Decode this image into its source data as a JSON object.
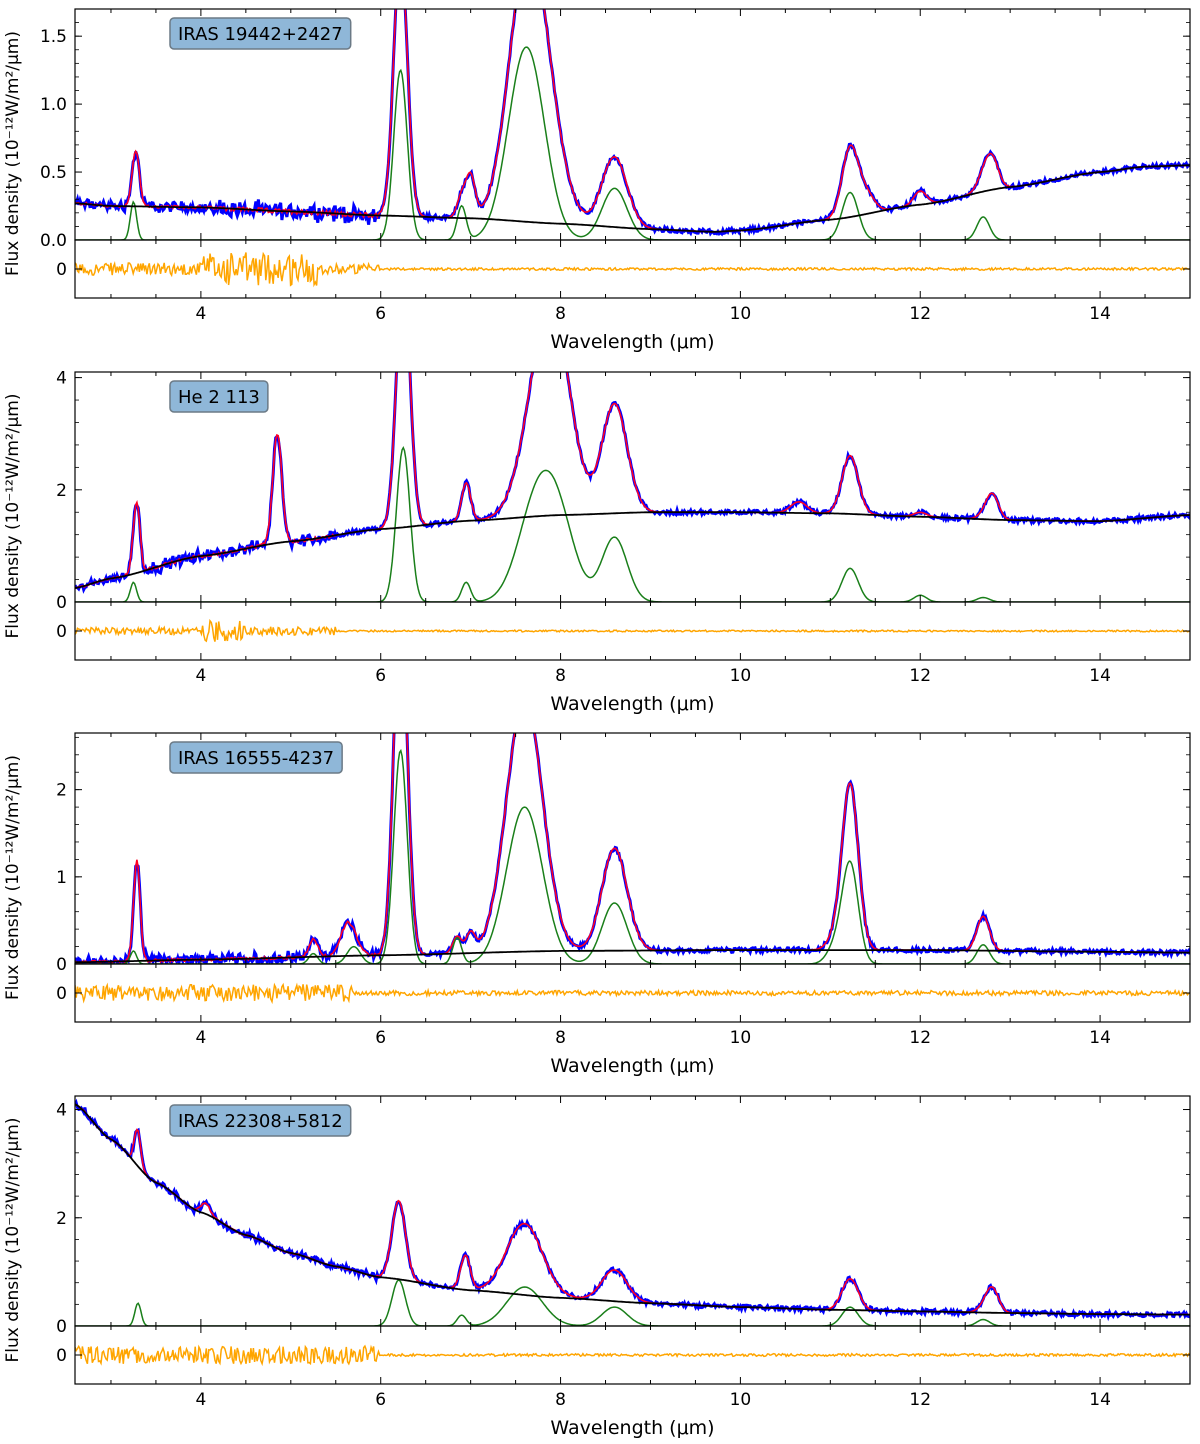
{
  "figure": {
    "x_label": "Wavelength (μm)",
    "y_label": "Flux density (10⁻¹²W/m²/μm)"
  },
  "colors": {
    "observed": "#0000ff",
    "model": "#ff0022",
    "pah": "#1a7f1a",
    "continuum": "#000000",
    "residual": "#ffa500",
    "label_box_fill": "#8fb7d8",
    "label_box_edge": "#6b7a86"
  },
  "chart_data": [
    {
      "type": "line",
      "label": "IRAS 19442+2427",
      "xlabel": "Wavelength (μm)",
      "ylabel": "Flux density (10⁻¹²W/m²/μm)",
      "xlim": [
        2.6,
        15.0
      ],
      "ylim": [
        0,
        1.7
      ],
      "x_ticks": [
        4,
        6,
        8,
        10,
        12,
        14
      ],
      "y_ticks": [
        0.0,
        0.5,
        1.0,
        1.5
      ],
      "y_tick_labels": [
        "0.0",
        "0.5",
        "1.0",
        "1.5"
      ],
      "residual_ylim": [
        -0.28,
        0.28
      ],
      "residual_ticks": [
        0
      ],
      "continuum": [
        [
          2.6,
          0.27
        ],
        [
          3,
          0.25
        ],
        [
          4,
          0.24
        ],
        [
          5,
          0.21
        ],
        [
          6,
          0.18
        ],
        [
          7,
          0.16
        ],
        [
          8,
          0.12
        ],
        [
          9,
          0.08
        ],
        [
          9.7,
          0.06
        ],
        [
          10,
          0.07
        ],
        [
          11,
          0.15
        ],
        [
          12,
          0.26
        ],
        [
          13,
          0.39
        ],
        [
          14,
          0.5
        ],
        [
          14.5,
          0.54
        ],
        [
          15,
          0.55
        ]
      ],
      "pah": [
        [
          3.25,
          0.28
        ],
        [
          6.22,
          1.25
        ],
        [
          6.9,
          0.25
        ],
        [
          7.62,
          1.42
        ],
        [
          8.6,
          0.38
        ],
        [
          11.22,
          0.35
        ],
        [
          12.7,
          0.17
        ]
      ],
      "model_peaks": [
        [
          3.29,
          0.29
        ],
        [
          6.22,
          1.15
        ],
        [
          7.0,
          0.3
        ],
        [
          7.62,
          0.85
        ],
        [
          7.85,
          0.5
        ],
        [
          8.6,
          0.27
        ],
        [
          11.22,
          0.28
        ],
        [
          11.4,
          0.14
        ],
        [
          12.0,
          0.1
        ],
        [
          12.8,
          0.22
        ]
      ],
      "observed_noise": [
        [
          2.6,
          4.2,
          0.03
        ],
        [
          4.2,
          6.0,
          0.05
        ]
      ],
      "residual_noise": [
        [
          2.6,
          4.0,
          0.06
        ],
        [
          4.0,
          5.3,
          0.16
        ],
        [
          5.3,
          6.0,
          0.05
        ],
        [
          6.0,
          15.0,
          0.012
        ]
      ]
    },
    {
      "type": "line",
      "label": "He 2 113",
      "xlabel": "Wavelength (μm)",
      "ylabel": "Flux density (10⁻¹²W/m²/μm)",
      "xlim": [
        2.6,
        15.0
      ],
      "ylim": [
        0,
        4.1
      ],
      "x_ticks": [
        4,
        6,
        8,
        10,
        12,
        14
      ],
      "y_ticks": [
        0,
        2,
        4
      ],
      "y_tick_labels": [
        "0",
        "2",
        "4"
      ],
      "residual_ylim": [
        -0.4,
        0.4
      ],
      "residual_ticks": [
        0
      ],
      "continuum": [
        [
          2.6,
          0.25
        ],
        [
          3,
          0.42
        ],
        [
          4,
          0.82
        ],
        [
          5,
          1.08
        ],
        [
          6,
          1.3
        ],
        [
          7,
          1.45
        ],
        [
          8,
          1.55
        ],
        [
          9,
          1.6
        ],
        [
          10,
          1.6
        ],
        [
          11,
          1.58
        ],
        [
          12,
          1.52
        ],
        [
          13,
          1.46
        ],
        [
          14,
          1.44
        ],
        [
          15,
          1.55
        ]
      ],
      "pah": [
        [
          3.25,
          0.35
        ],
        [
          6.25,
          2.75
        ],
        [
          6.95,
          0.35
        ],
        [
          7.7,
          1.35
        ],
        [
          7.95,
          1.5
        ],
        [
          8.6,
          1.15
        ],
        [
          11.22,
          0.6
        ],
        [
          12.0,
          0.12
        ],
        [
          12.7,
          0.08
        ]
      ],
      "model_peaks": [
        [
          3.29,
          1.15
        ],
        [
          4.85,
          1.95
        ],
        [
          6.25,
          2.75
        ],
        [
          6.95,
          0.45
        ],
        [
          7.9,
          2.3
        ],
        [
          8.6,
          1.2
        ],
        [
          10.65,
          0.2
        ],
        [
          11.22,
          0.65
        ],
        [
          12.8,
          0.45
        ]
      ],
      "observed_noise": [
        [
          2.6,
          3.2,
          0.05
        ],
        [
          3.2,
          5.5,
          0.08
        ]
      ],
      "residual_noise": [
        [
          2.6,
          4.0,
          0.05
        ],
        [
          4.0,
          4.5,
          0.15
        ],
        [
          4.5,
          5.5,
          0.06
        ],
        [
          5.5,
          15.0,
          0.012
        ]
      ]
    },
    {
      "type": "line",
      "label": "IRAS 16555-4237",
      "xlabel": "Wavelength (μm)",
      "ylabel": "Flux density (10⁻¹²W/m²/μm)",
      "xlim": [
        2.6,
        15.0
      ],
      "ylim": [
        0,
        2.65
      ],
      "x_ticks": [
        4,
        6,
        8,
        10,
        12,
        14
      ],
      "y_ticks": [
        0,
        1,
        2
      ],
      "y_tick_labels": [
        "0",
        "1",
        "2"
      ],
      "residual_ylim": [
        -0.3,
        0.3
      ],
      "residual_ticks": [
        0
      ],
      "continuum": [
        [
          2.6,
          0.02
        ],
        [
          4,
          0.05
        ],
        [
          6,
          0.1
        ],
        [
          8,
          0.15
        ],
        [
          10,
          0.16
        ],
        [
          12,
          0.16
        ],
        [
          14,
          0.14
        ],
        [
          15,
          0.13
        ]
      ],
      "pah": [
        [
          3.25,
          0.15
        ],
        [
          5.25,
          0.12
        ],
        [
          5.7,
          0.2
        ],
        [
          6.22,
          2.45
        ],
        [
          6.85,
          0.3
        ],
        [
          7.6,
          1.8
        ],
        [
          8.6,
          0.7
        ],
        [
          11.22,
          1.15
        ],
        [
          11.05,
          0.18
        ],
        [
          12.7,
          0.22
        ]
      ],
      "model_peaks": [
        [
          3.29,
          1.1
        ],
        [
          5.25,
          0.12
        ],
        [
          5.62,
          0.3
        ],
        [
          6.22,
          2.45
        ],
        [
          7.0,
          0.22
        ],
        [
          7.6,
          1.75
        ],
        [
          8.6,
          0.72
        ],
        [
          11.22,
          1.15
        ],
        [
          12.7,
          0.25
        ]
      ],
      "observed_noise": [
        [
          2.6,
          6.0,
          0.05
        ]
      ],
      "residual_noise": [
        [
          2.6,
          5.7,
          0.09
        ],
        [
          5.7,
          15.0,
          0.025
        ]
      ]
    },
    {
      "type": "line",
      "label": "IRAS 22308+5812",
      "xlabel": "Wavelength (μm)",
      "ylabel": "Flux density (10⁻¹²W/m²/μm)",
      "xlim": [
        2.6,
        15.0
      ],
      "ylim": [
        0,
        4.25
      ],
      "x_ticks": [
        4,
        6,
        8,
        10,
        12,
        14
      ],
      "y_ticks": [
        0,
        2,
        4
      ],
      "y_tick_labels": [
        "0",
        "2",
        "4"
      ],
      "residual_ylim": [
        -0.45,
        0.45
      ],
      "residual_ticks": [
        0
      ],
      "continuum": [
        [
          2.6,
          4.1
        ],
        [
          3,
          3.45
        ],
        [
          3.5,
          2.65
        ],
        [
          4,
          2.1
        ],
        [
          4.5,
          1.68
        ],
        [
          5,
          1.35
        ],
        [
          5.5,
          1.1
        ],
        [
          6,
          0.9
        ],
        [
          7,
          0.66
        ],
        [
          8,
          0.52
        ],
        [
          9,
          0.42
        ],
        [
          10,
          0.35
        ],
        [
          11,
          0.3
        ],
        [
          12,
          0.27
        ],
        [
          13,
          0.24
        ],
        [
          14,
          0.22
        ],
        [
          15,
          0.21
        ]
      ],
      "pah": [
        [
          3.3,
          0.42
        ],
        [
          6.2,
          0.85
        ],
        [
          6.9,
          0.2
        ],
        [
          7.6,
          0.72
        ],
        [
          8.6,
          0.35
        ],
        [
          11.22,
          0.35
        ],
        [
          12.7,
          0.12
        ]
      ],
      "model_peaks": [
        [
          3.29,
          0.4
        ],
        [
          4.05,
          0.2
        ],
        [
          6.2,
          0.9
        ],
        [
          6.95,
          0.55
        ],
        [
          7.6,
          0.85
        ],
        [
          8.6,
          0.35
        ],
        [
          11.22,
          0.35
        ],
        [
          12.8,
          0.45
        ]
      ],
      "observed_noise": [
        [
          2.6,
          6.0,
          0.04
        ]
      ],
      "residual_noise": [
        [
          2.6,
          6.0,
          0.14
        ],
        [
          6.0,
          15.0,
          0.02
        ]
      ]
    }
  ]
}
